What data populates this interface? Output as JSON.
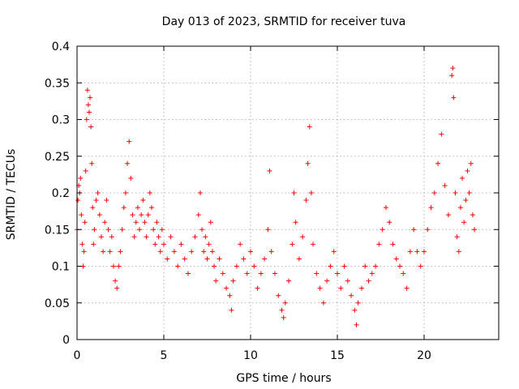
{
  "chart_data": {
    "type": "scatter",
    "title": "Day 013 of 2023, SRMTID for receiver tuva",
    "xlabel": "GPS time / hours",
    "ylabel": "SRMTID / TECUs",
    "xlim": [
      0,
      24.3
    ],
    "ylim": [
      0,
      0.4
    ],
    "xticks": [
      0,
      5,
      10,
      15,
      20
    ],
    "yticks": [
      0,
      0.05,
      0.1,
      0.15,
      0.2,
      0.25,
      0.3,
      0.35,
      0.4
    ],
    "grid": true,
    "marker": "plus",
    "color": "#ff0000",
    "series": [
      {
        "name": "",
        "points": [
          [
            0.0,
            0.15
          ],
          [
            0.05,
            0.19
          ],
          [
            0.1,
            0.21
          ],
          [
            0.15,
            0.2
          ],
          [
            0.2,
            0.22
          ],
          [
            0.25,
            0.17
          ],
          [
            0.3,
            0.13
          ],
          [
            0.35,
            0.1
          ],
          [
            0.4,
            0.12
          ],
          [
            0.45,
            0.16
          ],
          [
            0.5,
            0.23
          ],
          [
            0.55,
            0.3
          ],
          [
            0.6,
            0.34
          ],
          [
            0.65,
            0.32
          ],
          [
            0.7,
            0.31
          ],
          [
            0.75,
            0.33
          ],
          [
            0.8,
            0.29
          ],
          [
            0.85,
            0.24
          ],
          [
            0.9,
            0.18
          ],
          [
            0.95,
            0.13
          ],
          [
            1.0,
            0.15
          ],
          [
            1.1,
            0.19
          ],
          [
            1.2,
            0.2
          ],
          [
            1.3,
            0.17
          ],
          [
            1.4,
            0.14
          ],
          [
            1.5,
            0.12
          ],
          [
            1.6,
            0.16
          ],
          [
            1.7,
            0.19
          ],
          [
            1.8,
            0.15
          ],
          [
            1.9,
            0.12
          ],
          [
            2.0,
            0.14
          ],
          [
            2.1,
            0.1
          ],
          [
            2.2,
            0.08
          ],
          [
            2.3,
            0.07
          ],
          [
            2.4,
            0.1
          ],
          [
            2.5,
            0.12
          ],
          [
            2.6,
            0.15
          ],
          [
            2.7,
            0.18
          ],
          [
            2.8,
            0.2
          ],
          [
            2.9,
            0.24
          ],
          [
            3.0,
            0.27
          ],
          [
            3.1,
            0.22
          ],
          [
            3.2,
            0.17
          ],
          [
            3.3,
            0.14
          ],
          [
            3.4,
            0.16
          ],
          [
            3.5,
            0.18
          ],
          [
            3.6,
            0.15
          ],
          [
            3.7,
            0.17
          ],
          [
            3.8,
            0.19
          ],
          [
            3.9,
            0.16
          ],
          [
            4.0,
            0.14
          ],
          [
            4.1,
            0.17
          ],
          [
            4.2,
            0.2
          ],
          [
            4.3,
            0.18
          ],
          [
            4.4,
            0.15
          ],
          [
            4.5,
            0.13
          ],
          [
            4.6,
            0.16
          ],
          [
            4.7,
            0.14
          ],
          [
            4.8,
            0.12
          ],
          [
            4.9,
            0.15
          ],
          [
            5.0,
            0.13
          ],
          [
            5.2,
            0.11
          ],
          [
            5.4,
            0.14
          ],
          [
            5.6,
            0.12
          ],
          [
            5.8,
            0.1
          ],
          [
            6.0,
            0.13
          ],
          [
            6.2,
            0.11
          ],
          [
            6.4,
            0.09
          ],
          [
            6.6,
            0.12
          ],
          [
            6.8,
            0.14
          ],
          [
            7.0,
            0.17
          ],
          [
            7.1,
            0.2
          ],
          [
            7.2,
            0.15
          ],
          [
            7.3,
            0.12
          ],
          [
            7.4,
            0.14
          ],
          [
            7.5,
            0.11
          ],
          [
            7.6,
            0.13
          ],
          [
            7.7,
            0.16
          ],
          [
            7.8,
            0.12
          ],
          [
            7.9,
            0.1
          ],
          [
            8.0,
            0.08
          ],
          [
            8.2,
            0.11
          ],
          [
            8.4,
            0.09
          ],
          [
            8.6,
            0.07
          ],
          [
            8.8,
            0.06
          ],
          [
            8.9,
            0.04
          ],
          [
            9.0,
            0.08
          ],
          [
            9.2,
            0.1
          ],
          [
            9.4,
            0.13
          ],
          [
            9.6,
            0.11
          ],
          [
            9.8,
            0.09
          ],
          [
            10.0,
            0.12
          ],
          [
            10.2,
            0.1
          ],
          [
            10.4,
            0.07
          ],
          [
            10.6,
            0.09
          ],
          [
            10.8,
            0.11
          ],
          [
            11.0,
            0.15
          ],
          [
            11.1,
            0.23
          ],
          [
            11.2,
            0.12
          ],
          [
            11.4,
            0.09
          ],
          [
            11.6,
            0.06
          ],
          [
            11.8,
            0.04
          ],
          [
            11.9,
            0.03
          ],
          [
            12.0,
            0.05
          ],
          [
            12.2,
            0.08
          ],
          [
            12.4,
            0.13
          ],
          [
            12.5,
            0.2
          ],
          [
            12.6,
            0.16
          ],
          [
            12.8,
            0.11
          ],
          [
            13.0,
            0.14
          ],
          [
            13.2,
            0.19
          ],
          [
            13.3,
            0.24
          ],
          [
            13.4,
            0.29
          ],
          [
            13.5,
            0.2
          ],
          [
            13.6,
            0.13
          ],
          [
            13.8,
            0.09
          ],
          [
            14.0,
            0.07
          ],
          [
            14.2,
            0.05
          ],
          [
            14.4,
            0.08
          ],
          [
            14.6,
            0.1
          ],
          [
            14.8,
            0.12
          ],
          [
            15.0,
            0.09
          ],
          [
            15.2,
            0.07
          ],
          [
            15.4,
            0.1
          ],
          [
            15.6,
            0.08
          ],
          [
            15.8,
            0.06
          ],
          [
            16.0,
            0.04
          ],
          [
            16.1,
            0.02
          ],
          [
            16.2,
            0.05
          ],
          [
            16.4,
            0.07
          ],
          [
            16.6,
            0.1
          ],
          [
            16.8,
            0.08
          ],
          [
            17.0,
            0.09
          ],
          [
            17.2,
            0.1
          ],
          [
            17.4,
            0.13
          ],
          [
            17.6,
            0.15
          ],
          [
            17.8,
            0.18
          ],
          [
            18.0,
            0.16
          ],
          [
            18.2,
            0.13
          ],
          [
            18.4,
            0.11
          ],
          [
            18.6,
            0.1
          ],
          [
            18.8,
            0.09
          ],
          [
            19.0,
            0.07
          ],
          [
            19.2,
            0.12
          ],
          [
            19.4,
            0.15
          ],
          [
            19.6,
            0.12
          ],
          [
            19.8,
            0.1
          ],
          [
            20.0,
            0.12
          ],
          [
            20.2,
            0.15
          ],
          [
            20.4,
            0.18
          ],
          [
            20.6,
            0.2
          ],
          [
            20.8,
            0.24
          ],
          [
            21.0,
            0.28
          ],
          [
            21.2,
            0.21
          ],
          [
            21.4,
            0.17
          ],
          [
            21.6,
            0.36
          ],
          [
            21.65,
            0.37
          ],
          [
            21.7,
            0.33
          ],
          [
            21.8,
            0.2
          ],
          [
            21.9,
            0.14
          ],
          [
            22.0,
            0.12
          ],
          [
            22.1,
            0.18
          ],
          [
            22.2,
            0.22
          ],
          [
            22.3,
            0.16
          ],
          [
            22.4,
            0.19
          ],
          [
            22.5,
            0.23
          ],
          [
            22.6,
            0.2
          ],
          [
            22.7,
            0.24
          ],
          [
            22.8,
            0.17
          ],
          [
            22.9,
            0.15
          ]
        ]
      }
    ]
  }
}
